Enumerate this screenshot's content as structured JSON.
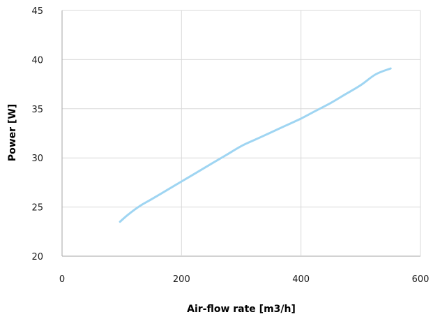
{
  "chart_data": {
    "type": "line",
    "title": "",
    "xlabel": "Air-flow rate [m3/h]",
    "ylabel": "Power [W]",
    "xlim": [
      0,
      600
    ],
    "ylim": [
      20,
      45
    ],
    "xticks": [
      0,
      200,
      400,
      600
    ],
    "yticks": [
      20,
      25,
      30,
      35,
      40,
      45
    ],
    "grid": true,
    "legend": "none",
    "colors": {
      "line": "#9fd5f2",
      "grid": "#d9d9d9",
      "axis": "#a6a6a6"
    },
    "series": [
      {
        "x": [
          97,
          110,
          130,
          150,
          175,
          200,
          225,
          250,
          275,
          300,
          325,
          350,
          375,
          400,
          425,
          450,
          475,
          500,
          525,
          550
        ],
        "values": [
          23.5,
          24.2,
          25.1,
          25.8,
          26.7,
          27.6,
          28.5,
          29.4,
          30.3,
          31.2,
          31.9,
          32.6,
          33.3,
          34.0,
          34.8,
          35.6,
          36.5,
          37.4,
          38.5,
          39.1
        ]
      }
    ]
  }
}
